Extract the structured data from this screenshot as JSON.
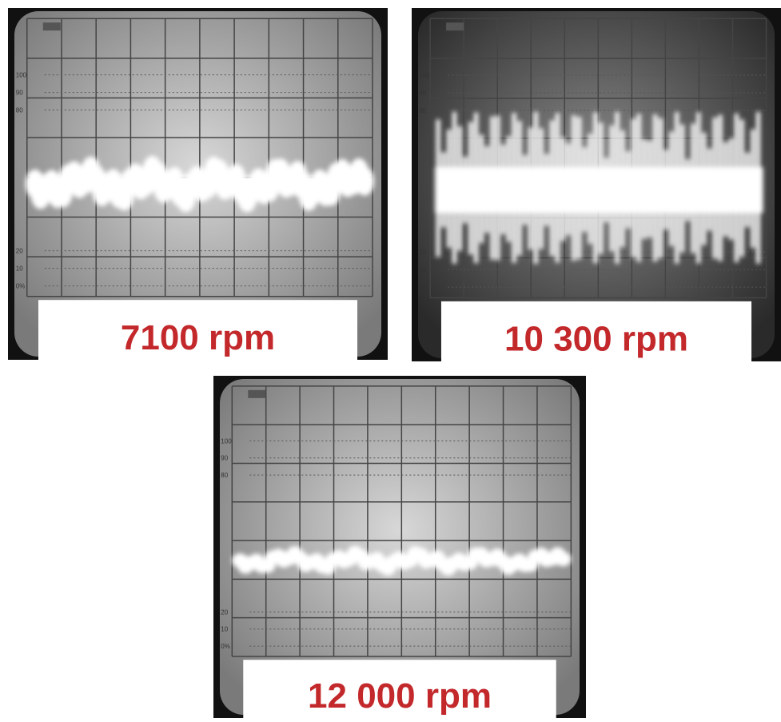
{
  "panels": [
    {
      "label": "7100 rpm"
    },
    {
      "label": "10 300 rpm"
    },
    {
      "label": "12 000 rpm"
    }
  ],
  "scale_labels": [
    "100",
    "90",
    "80",
    "20",
    "10",
    "0%"
  ]
}
